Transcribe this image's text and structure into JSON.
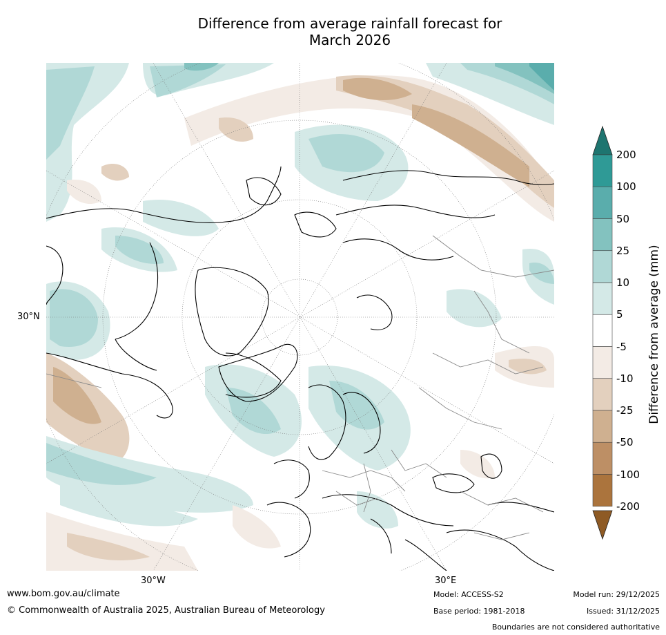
{
  "title_line1": "Difference from average rainfall forecast for",
  "title_line2": "March 2026",
  "map": {
    "lat_labels": [
      "30°N"
    ],
    "lon_labels": [
      "30°W",
      "30°E"
    ]
  },
  "colorbar": {
    "title": "Difference from average (mm)",
    "tick_labels": [
      "200",
      "100",
      "50",
      "25",
      "10",
      "5",
      "-5",
      "-10",
      "-25",
      "-50",
      "-100",
      "-200"
    ],
    "colors": [
      "#1e7570",
      "#2f9a96",
      "#5aadac",
      "#83c2bf",
      "#b0d8d6",
      "#d4e9e7",
      "#ffffff",
      "#f3ebe5",
      "#e3d0be",
      "#cfb090",
      "#bd8f65",
      "#ab743d",
      "#8e5a24"
    ]
  },
  "footer": {
    "website": "www.bom.gov.au/climate",
    "copyright": "© Commonwealth of Australia 2025, Australian Bureau of Meteorology",
    "model": "Model: ACCESS-S2",
    "base_period": "Base period: 1981-2018",
    "model_run": "Model run: 29/12/2025",
    "issued": "Issued: 31/12/2025",
    "boundaries_note": "Boundaries are not considered authoritative"
  }
}
